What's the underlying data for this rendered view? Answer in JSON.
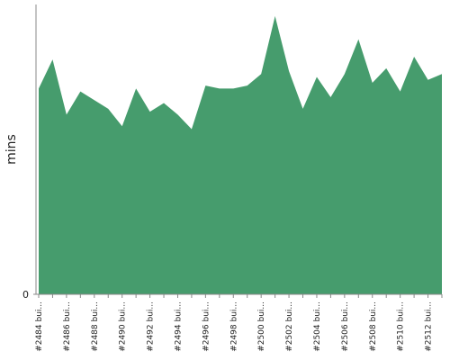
{
  "chart_data": {
    "type": "area",
    "y_label": "mins",
    "color": "#469c6d",
    "categories": [
      "#2484 bui...",
      null,
      "#2486 bui...",
      null,
      "#2488 bui...",
      null,
      "#2490 bui...",
      null,
      "#2492 bui...",
      null,
      "#2494 bui...",
      null,
      "#2496 bui...",
      null,
      "#2498 bui...",
      null,
      "#2500 bui...",
      null,
      "#2502 bui...",
      null,
      "#2504 bui...",
      null,
      "#2506 bui...",
      null,
      "#2508 bui...",
      null,
      "#2510 bui...",
      null,
      "#2512 bui...",
      null
    ],
    "values": [
      71,
      81,
      62,
      70,
      67,
      64,
      58,
      71,
      63,
      66,
      62,
      57,
      72,
      71,
      71,
      72,
      76,
      96,
      77,
      64,
      75,
      68,
      76,
      88,
      73,
      78,
      70,
      82,
      74,
      76
    ],
    "ylim": [
      0,
      100
    ],
    "yticks": [
      0
    ]
  }
}
